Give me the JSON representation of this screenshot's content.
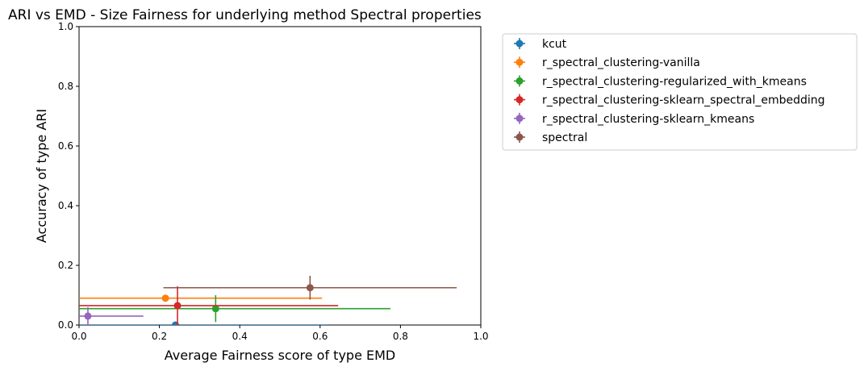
{
  "chart_data": {
    "type": "scatter",
    "title": "ARI vs EMD - Size Fairness for underlying method Spectral properties",
    "xlabel": "Average Fairness score of type EMD",
    "ylabel": "Accuracy of type ARI",
    "xlim": [
      0.0,
      1.0
    ],
    "ylim": [
      0.0,
      1.0
    ],
    "xticks": [
      "0.0",
      "0.2",
      "0.4",
      "0.6",
      "0.8",
      "1.0"
    ],
    "yticks": [
      "0.0",
      "0.2",
      "0.4",
      "0.6",
      "0.8",
      "1.0"
    ],
    "grid": false,
    "error_bars": true,
    "legend_position": "outside top-right",
    "series": [
      {
        "name": "kcut",
        "color": "#1f77b4",
        "x": 0.24,
        "y": 0.0,
        "xerr": [
          0.24,
          0.38
        ],
        "yerr": [
          0.0,
          0.0
        ]
      },
      {
        "name": "r_spectral_clustering-vanilla",
        "color": "#ff7f0e",
        "x": 0.215,
        "y": 0.09,
        "xerr": [
          0.215,
          0.39
        ],
        "yerr": [
          0.0,
          0.0
        ]
      },
      {
        "name": "r_spectral_clustering-regularized_with_kmeans",
        "color": "#2ca02c",
        "x": 0.34,
        "y": 0.055,
        "xerr": [
          0.34,
          0.435
        ],
        "yerr": [
          0.045,
          0.045
        ]
      },
      {
        "name": "r_spectral_clustering-sklearn_spectral_embedding",
        "color": "#d62728",
        "x": 0.245,
        "y": 0.065,
        "xerr": [
          0.245,
          0.4
        ],
        "yerr": [
          0.065,
          0.065
        ]
      },
      {
        "name": "r_spectral_clustering-sklearn_kmeans",
        "color": "#9467bd",
        "x": 0.022,
        "y": 0.03,
        "xerr": [
          0.022,
          0.138
        ],
        "yerr": [
          0.03,
          0.03
        ]
      },
      {
        "name": "spectral",
        "color": "#8c564b",
        "x": 0.575,
        "y": 0.125,
        "xerr": [
          0.365,
          0.365
        ],
        "yerr": [
          0.04,
          0.04
        ]
      }
    ]
  }
}
